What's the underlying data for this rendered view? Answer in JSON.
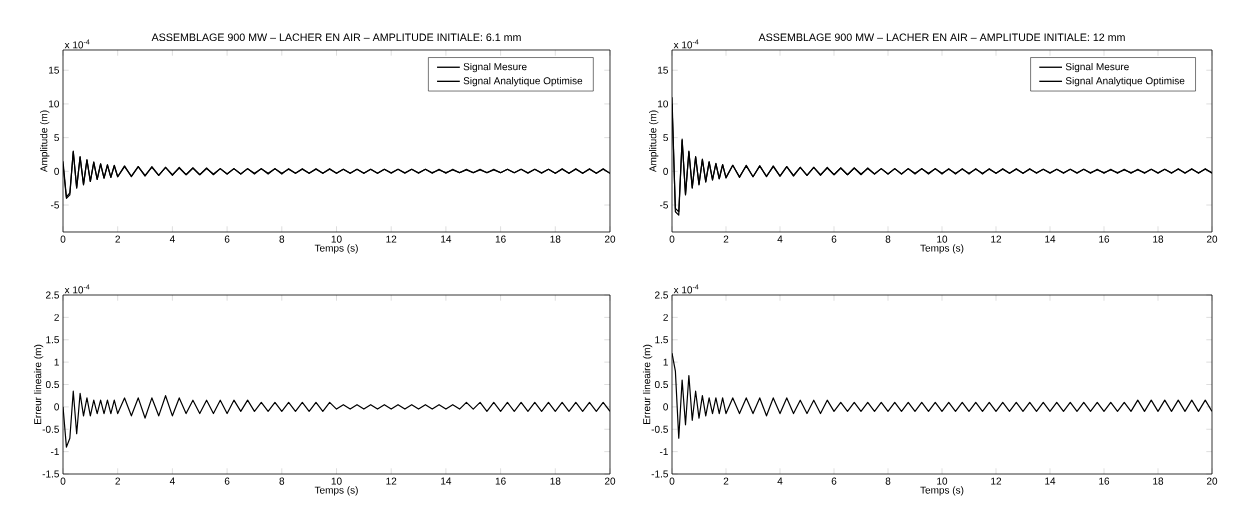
{
  "chart_data": [
    {
      "type": "line",
      "title": "ASSEMBLAGE 900 MW – LACHER EN AIR – AMPLITUDE INITIALE: 6.1 mm",
      "xlabel": "Temps (s)",
      "ylabel": "Amplitude (m)",
      "annotations": [
        "x 10$^{-4}$"
      ],
      "legend": "top right",
      "marker": "none",
      "line_style": "solid",
      "xlim": [
        0,
        20
      ],
      "xticks": [
        0,
        2,
        4,
        6,
        8,
        10,
        12,
        14,
        16,
        18,
        20
      ],
      "ylim": [
        -9,
        18
      ],
      "yticks": [
        -5,
        0,
        5,
        10,
        15
      ],
      "x": [
        0,
        0.125,
        0.25,
        0.375,
        0.5,
        0.625,
        0.75,
        0.875,
        1,
        1.125,
        1.25,
        1.375,
        1.5,
        1.625,
        1.75,
        1.875,
        2,
        2.25,
        2.5,
        2.75,
        3,
        3.25,
        3.5,
        3.75,
        4,
        4.25,
        4.5,
        4.75,
        5,
        5.25,
        5.5,
        5.75,
        6,
        6.25,
        6.5,
        6.75,
        7,
        7.25,
        7.5,
        7.75,
        8,
        8.25,
        8.5,
        8.75,
        9,
        9.25,
        9.5,
        9.75,
        10,
        10.25,
        10.5,
        10.75,
        11,
        11.25,
        11.5,
        11.75,
        12,
        12.25,
        12.5,
        12.75,
        13,
        13.25,
        13.5,
        13.75,
        14,
        14.25,
        14.5,
        14.75,
        15,
        15.25,
        15.5,
        15.75,
        16,
        16.25,
        16.5,
        16.75,
        17,
        17.25,
        17.5,
        17.75,
        18,
        18.25,
        18.5,
        18.75,
        19,
        19.25,
        19.5,
        19.75,
        20
      ],
      "series": [
        {
          "name": "Signal Mesure",
          "color": "#000000",
          "values": [
            1,
            -4,
            -3.5,
            3,
            -2.5,
            2.2,
            -2,
            1.7,
            -1.5,
            1.4,
            -1.2,
            1.1,
            -1,
            1,
            -0.9,
            0.9,
            -0.8,
            0.8,
            -0.8,
            0.7,
            -0.7,
            0.7,
            -0.6,
            0.6,
            -0.6,
            0.6,
            -0.5,
            0.5,
            -0.5,
            0.5,
            -0.5,
            0.4,
            -0.4,
            0.4,
            -0.4,
            0.4,
            -0.4,
            0.4,
            -0.4,
            0.4,
            -0.4,
            0.4,
            -0.3,
            0.4,
            -0.3,
            0.4,
            -0.3,
            0.4,
            -0.3,
            0.3,
            -0.3,
            0.3,
            -0.3,
            0.3,
            -0.3,
            0.3,
            -0.3,
            0.3,
            -0.3,
            0.3,
            -0.3,
            0.3,
            -0.3,
            0.3,
            -0.3,
            0.3,
            -0.2,
            0.3,
            -0.2,
            0.3,
            -0.2,
            0.3,
            -0.2,
            0.3,
            -0.2,
            0.3,
            -0.3,
            0.3,
            -0.3,
            0.3,
            -0.3,
            0.4,
            -0.3,
            0.4,
            -0.3,
            0.4,
            -0.3,
            0.4,
            -0.3
          ]
        },
        {
          "name": "Signal Analytique Optimise",
          "color": "#000000",
          "values": [
            1.5,
            -3.8,
            -3.2,
            2.9,
            -2.4,
            2.1,
            -1.9,
            1.7,
            -1.5,
            1.3,
            -1.2,
            1.1,
            -1,
            0.9,
            -0.9,
            0.8,
            -0.8,
            0.7,
            -0.7,
            0.7,
            -0.6,
            0.6,
            -0.6,
            0.6,
            -0.5,
            0.5,
            -0.5,
            0.5,
            -0.5,
            0.4,
            -0.4,
            0.4,
            -0.4,
            0.4,
            -0.4,
            0.4,
            -0.3,
            0.4,
            -0.3,
            0.4,
            -0.3,
            0.3,
            -0.3,
            0.3,
            -0.3,
            0.3,
            -0.3,
            0.3,
            -0.3,
            0.3,
            -0.3,
            0.3,
            -0.3,
            0.3,
            -0.3,
            0.3,
            -0.2,
            0.3,
            -0.2,
            0.3,
            -0.2,
            0.3,
            -0.2,
            0.2,
            -0.2,
            0.2,
            -0.2,
            0.2,
            -0.2,
            0.2,
            -0.2,
            0.2,
            -0.2,
            0.3,
            -0.2,
            0.3,
            -0.2,
            0.3,
            -0.2,
            0.3,
            -0.3,
            0.3,
            -0.3,
            0.3,
            -0.3,
            0.3,
            -0.3,
            0.3,
            -0.3
          ]
        }
      ]
    },
    {
      "type": "line",
      "title": "ASSEMBLAGE 900 MW – LACHER EN AIR – AMPLITUDE INITIALE: 12 mm",
      "xlabel": "Temps (s)",
      "ylabel": "Amplitude (m)",
      "annotations": [
        "x 10$^{-4}$"
      ],
      "legend": "top right",
      "marker": "none",
      "line_style": "solid",
      "xlim": [
        0,
        20
      ],
      "xticks": [
        0,
        2,
        4,
        6,
        8,
        10,
        12,
        14,
        16,
        18,
        20
      ],
      "ylim": [
        -9,
        18
      ],
      "yticks": [
        -5,
        0,
        5,
        10,
        15
      ],
      "x": [
        0,
        0.125,
        0.25,
        0.375,
        0.5,
        0.625,
        0.75,
        0.875,
        1,
        1.125,
        1.25,
        1.375,
        1.5,
        1.625,
        1.75,
        1.875,
        2,
        2.25,
        2.5,
        2.75,
        3,
        3.25,
        3.5,
        3.75,
        4,
        4.25,
        4.5,
        4.75,
        5,
        5.25,
        5.5,
        5.75,
        6,
        6.25,
        6.5,
        6.75,
        7,
        7.25,
        7.5,
        7.75,
        8,
        8.25,
        8.5,
        8.75,
        9,
        9.25,
        9.5,
        9.75,
        10,
        10.25,
        10.5,
        10.75,
        11,
        11.25,
        11.5,
        11.75,
        12,
        12.25,
        12.5,
        12.75,
        13,
        13.25,
        13.5,
        13.75,
        14,
        14.25,
        14.5,
        14.75,
        15,
        15.25,
        15.5,
        15.75,
        16,
        16.25,
        16.5,
        16.75,
        17,
        17.25,
        17.5,
        17.75,
        18,
        18.25,
        18.5,
        18.75,
        19,
        19.25,
        19.5,
        19.75,
        20
      ],
      "series": [
        {
          "name": "Signal Mesure",
          "color": "#000000",
          "values": [
            11,
            -6,
            -6.5,
            4.8,
            -3.5,
            3,
            -2.5,
            2.2,
            -2,
            1.8,
            -1.6,
            1.4,
            -1.3,
            1.2,
            -1.1,
            1,
            -1,
            0.9,
            -0.9,
            0.9,
            -0.8,
            0.8,
            -0.8,
            0.8,
            -0.7,
            0.7,
            -0.7,
            0.6,
            -0.6,
            0.6,
            -0.6,
            0.6,
            -0.5,
            0.5,
            -0.5,
            0.5,
            -0.5,
            0.5,
            -0.4,
            0.4,
            -0.4,
            0.4,
            -0.4,
            0.4,
            -0.4,
            0.4,
            -0.4,
            0.4,
            -0.4,
            0.4,
            -0.4,
            0.4,
            -0.4,
            0.4,
            -0.4,
            0.4,
            -0.3,
            0.4,
            -0.3,
            0.4,
            -0.3,
            0.4,
            -0.3,
            0.3,
            -0.3,
            0.3,
            -0.3,
            0.3,
            -0.3,
            0.3,
            -0.3,
            0.3,
            -0.3,
            0.3,
            -0.3,
            0.3,
            -0.3,
            0.3,
            -0.3,
            0.3,
            -0.3,
            0.3,
            -0.3,
            0.4,
            -0.3,
            0.4,
            -0.3,
            0.4,
            -0.3
          ]
        },
        {
          "name": "Signal Analytique Optimise",
          "color": "#000000",
          "values": [
            10,
            -5.5,
            -6,
            4.6,
            -3.4,
            2.9,
            -2.4,
            2.1,
            -1.9,
            1.7,
            -1.5,
            1.4,
            -1.2,
            1.1,
            -1.1,
            1,
            -0.9,
            0.9,
            -0.8,
            0.8,
            -0.8,
            0.8,
            -0.7,
            0.7,
            -0.7,
            0.7,
            -0.6,
            0.6,
            -0.6,
            0.6,
            -0.5,
            0.5,
            -0.5,
            0.5,
            -0.5,
            0.5,
            -0.4,
            0.4,
            -0.4,
            0.4,
            -0.4,
            0.4,
            -0.4,
            0.4,
            -0.3,
            0.4,
            -0.3,
            0.4,
            -0.3,
            0.3,
            -0.3,
            0.3,
            -0.3,
            0.3,
            -0.3,
            0.3,
            -0.3,
            0.3,
            -0.3,
            0.3,
            -0.3,
            0.3,
            -0.2,
            0.3,
            -0.2,
            0.3,
            -0.2,
            0.3,
            -0.2,
            0.3,
            -0.2,
            0.2,
            -0.2,
            0.2,
            -0.2,
            0.2,
            -0.2,
            0.2,
            -0.2,
            0.3,
            -0.2,
            0.3,
            -0.2,
            0.3,
            -0.2,
            0.3,
            -0.2,
            0.3,
            -0.2
          ]
        }
      ]
    },
    {
      "type": "line",
      "xlabel": "Temps (s)",
      "ylabel": "Erreur lineaire (m)",
      "annotations": [
        "x 10$^{-4}$"
      ],
      "marker": "none",
      "line_style": "solid",
      "xlim": [
        0,
        20
      ],
      "xticks": [
        0,
        2,
        4,
        6,
        8,
        10,
        12,
        14,
        16,
        18,
        20
      ],
      "ylim": [
        -1.5,
        2.5
      ],
      "yticks": [
        -1.5,
        -1,
        -0.5,
        0,
        0.5,
        1,
        1.5,
        2,
        2.5
      ],
      "x": [
        0,
        0.125,
        0.25,
        0.375,
        0.5,
        0.625,
        0.75,
        0.875,
        1,
        1.125,
        1.25,
        1.375,
        1.5,
        1.625,
        1.75,
        1.875,
        2,
        2.25,
        2.5,
        2.75,
        3,
        3.25,
        3.5,
        3.75,
        4,
        4.25,
        4.5,
        4.75,
        5,
        5.25,
        5.5,
        5.75,
        6,
        6.25,
        6.5,
        6.75,
        7,
        7.25,
        7.5,
        7.75,
        8,
        8.25,
        8.5,
        8.75,
        9,
        9.25,
        9.5,
        9.75,
        10,
        10.25,
        10.5,
        10.75,
        11,
        11.25,
        11.5,
        11.75,
        12,
        12.25,
        12.5,
        12.75,
        13,
        13.25,
        13.5,
        13.75,
        14,
        14.25,
        14.5,
        14.75,
        15,
        15.25,
        15.5,
        15.75,
        16,
        16.25,
        16.5,
        16.75,
        17,
        17.25,
        17.5,
        17.75,
        18,
        18.25,
        18.5,
        18.75,
        19,
        19.25,
        19.5,
        19.75,
        20
      ],
      "series": [
        {
          "color": "#000000",
          "values": [
            0,
            -0.9,
            -0.7,
            0.35,
            -0.6,
            0.3,
            -0.2,
            0.2,
            -0.2,
            0.15,
            -0.15,
            0.15,
            -0.15,
            0.15,
            -0.15,
            0.15,
            -0.15,
            0.2,
            -0.2,
            0.2,
            -0.25,
            0.2,
            -0.2,
            0.25,
            -0.2,
            0.2,
            -0.15,
            0.15,
            -0.15,
            0.15,
            -0.15,
            0.15,
            -0.15,
            0.15,
            -0.1,
            0.15,
            -0.1,
            0.1,
            -0.1,
            0.1,
            -0.1,
            0.1,
            -0.1,
            0.1,
            -0.1,
            0.1,
            -0.1,
            0.1,
            -0.05,
            0.05,
            -0.05,
            0.05,
            -0.05,
            0.05,
            -0.05,
            0.05,
            -0.05,
            0.05,
            -0.05,
            0.05,
            -0.05,
            0.05,
            -0.05,
            0.05,
            -0.05,
            0.05,
            -0.05,
            0.1,
            -0.05,
            0.1,
            -0.1,
            0.1,
            -0.1,
            0.1,
            -0.1,
            0.1,
            -0.1,
            0.1,
            -0.1,
            0.1,
            -0.1,
            0.1,
            -0.1,
            0.1,
            -0.1,
            0.1,
            -0.1,
            0.1,
            -0.1
          ]
        }
      ]
    },
    {
      "type": "line",
      "xlabel": "Temps (s)",
      "ylabel": "Erreur lineaire (m)",
      "annotations": [
        "x 10$^{-4}$"
      ],
      "marker": "none",
      "line_style": "solid",
      "xlim": [
        0,
        20
      ],
      "xticks": [
        0,
        2,
        4,
        6,
        8,
        10,
        12,
        14,
        16,
        18,
        20
      ],
      "ylim": [
        -1.5,
        2.5
      ],
      "yticks": [
        -1.5,
        -1,
        -0.5,
        0,
        0.5,
        1,
        1.5,
        2,
        2.5
      ],
      "x": [
        0,
        0.125,
        0.25,
        0.375,
        0.5,
        0.625,
        0.75,
        0.875,
        1,
        1.125,
        1.25,
        1.375,
        1.5,
        1.625,
        1.75,
        1.875,
        2,
        2.25,
        2.5,
        2.75,
        3,
        3.25,
        3.5,
        3.75,
        4,
        4.25,
        4.5,
        4.75,
        5,
        5.25,
        5.5,
        5.75,
        6,
        6.25,
        6.5,
        6.75,
        7,
        7.25,
        7.5,
        7.75,
        8,
        8.25,
        8.5,
        8.75,
        9,
        9.25,
        9.5,
        9.75,
        10,
        10.25,
        10.5,
        10.75,
        11,
        11.25,
        11.5,
        11.75,
        12,
        12.25,
        12.5,
        12.75,
        13,
        13.25,
        13.5,
        13.75,
        14,
        14.25,
        14.5,
        14.75,
        15,
        15.25,
        15.5,
        15.75,
        16,
        16.25,
        16.5,
        16.75,
        17,
        17.25,
        17.5,
        17.75,
        18,
        18.25,
        18.5,
        18.75,
        19,
        19.25,
        19.5,
        19.75,
        20
      ],
      "series": [
        {
          "color": "#000000",
          "values": [
            1.2,
            0.8,
            -0.7,
            0.6,
            -0.4,
            0.7,
            -0.3,
            0.35,
            -0.25,
            0.25,
            -0.2,
            0.2,
            -0.15,
            0.2,
            -0.15,
            0.2,
            -0.15,
            0.2,
            -0.15,
            0.2,
            -0.15,
            0.2,
            -0.2,
            0.2,
            -0.15,
            0.2,
            -0.15,
            0.15,
            -0.15,
            0.15,
            -0.15,
            0.15,
            -0.1,
            0.1,
            -0.1,
            0.1,
            -0.1,
            0.1,
            -0.1,
            0.1,
            -0.1,
            0.1,
            -0.1,
            0.1,
            -0.1,
            0.1,
            -0.1,
            0.1,
            -0.1,
            0.1,
            -0.1,
            0.1,
            -0.1,
            0.1,
            -0.1,
            0.1,
            -0.1,
            0.1,
            -0.1,
            0.1,
            -0.1,
            0.1,
            -0.1,
            0.1,
            -0.1,
            0.1,
            -0.1,
            0.1,
            -0.1,
            0.1,
            -0.1,
            0.1,
            -0.1,
            0.1,
            -0.1,
            0.1,
            -0.1,
            0.15,
            -0.1,
            0.15,
            -0.1,
            0.15,
            -0.1,
            0.15,
            -0.1,
            0.15,
            -0.1,
            0.15,
            -0.1
          ]
        }
      ]
    }
  ]
}
